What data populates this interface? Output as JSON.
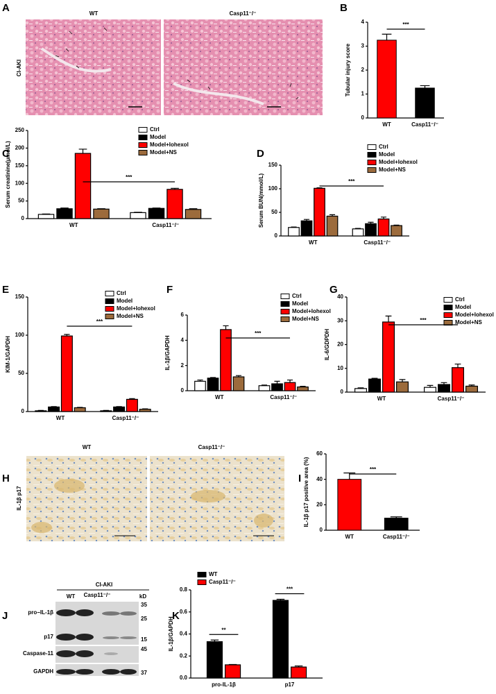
{
  "chart_data": [
    {
      "panel": "B",
      "type": "bar",
      "ylabel": "Tubular injury score",
      "categories": [
        "WT",
        "Casp11⁻/⁻"
      ],
      "values": [
        3.25,
        1.25
      ],
      "errors": [
        0.25,
        0.1
      ],
      "colors": [
        "#ff0000",
        "#000000"
      ],
      "ylim": [
        0,
        4
      ],
      "yticks": [
        0,
        1,
        2,
        3,
        4
      ],
      "significance": [
        "***"
      ]
    },
    {
      "panel": "C",
      "type": "grouped-bar",
      "ylabel": "Serum creatinine(μmol/L)",
      "categories": [
        "WT",
        "Casp11⁻/⁻"
      ],
      "series": [
        {
          "name": "Ctrl",
          "color": "#ffffff",
          "values": [
            12,
            17
          ],
          "errors": [
            1,
            1
          ]
        },
        {
          "name": "Model",
          "color": "#000000",
          "values": [
            28,
            29
          ],
          "errors": [
            2,
            1
          ]
        },
        {
          "name": "Model+Iohexol",
          "color": "#ff0000",
          "values": [
            185,
            83
          ],
          "errors": [
            12,
            3
          ]
        },
        {
          "name": "Model+NS",
          "color": "#9c6b3c",
          "values": [
            27,
            26
          ],
          "errors": [
            1,
            2
          ]
        }
      ],
      "ylim": [
        0,
        250
      ],
      "yticks": [
        0,
        50,
        100,
        150,
        200,
        250
      ],
      "significance": [
        "***"
      ]
    },
    {
      "panel": "D",
      "type": "grouped-bar",
      "ylabel": "Serum BUN(mmol/L)",
      "categories": [
        "WT",
        "Casp11⁻/⁻"
      ],
      "series": [
        {
          "name": "Ctrl",
          "color": "#ffffff",
          "values": [
            18,
            15
          ],
          "errors": [
            1,
            1
          ]
        },
        {
          "name": "Model",
          "color": "#000000",
          "values": [
            32,
            26
          ],
          "errors": [
            3,
            3
          ]
        },
        {
          "name": "Model+Iohexol",
          "color": "#ff0000",
          "values": [
            101,
            36
          ],
          "errors": [
            1,
            4
          ]
        },
        {
          "name": "Model+NS",
          "color": "#9c6b3c",
          "values": [
            42,
            22
          ],
          "errors": [
            3,
            1
          ]
        }
      ],
      "ylim": [
        0,
        150
      ],
      "yticks": [
        0,
        50,
        100,
        150
      ],
      "significance": [
        "***"
      ]
    },
    {
      "panel": "E",
      "type": "grouped-bar",
      "ylabel": "KIM-1/GAPDH",
      "categories": [
        "WT",
        "Casp11⁻/⁻"
      ],
      "series": [
        {
          "name": "Ctrl",
          "color": "#ffffff",
          "values": [
            1,
            1
          ],
          "errors": [
            0.5,
            0.5
          ]
        },
        {
          "name": "Model",
          "color": "#000000",
          "values": [
            6,
            6
          ],
          "errors": [
            0.5,
            0.5
          ]
        },
        {
          "name": "Model+Iohexol",
          "color": "#ff0000",
          "values": [
            99,
            16
          ],
          "errors": [
            2,
            1
          ]
        },
        {
          "name": "Model+NS",
          "color": "#9c6b3c",
          "values": [
            5,
            3
          ],
          "errors": [
            0.5,
            0.5
          ]
        }
      ],
      "ylim": [
        0,
        150
      ],
      "yticks": [
        0,
        50,
        100,
        150
      ],
      "significance": [
        "***"
      ]
    },
    {
      "panel": "F",
      "type": "grouped-bar",
      "ylabel": "IL-1β/GAPDH",
      "categories": [
        "WT",
        "Casp11⁻/⁻"
      ],
      "series": [
        {
          "name": "Ctrl",
          "color": "#ffffff",
          "values": [
            0.75,
            0.4
          ],
          "errors": [
            0.1,
            0.05
          ]
        },
        {
          "name": "Model",
          "color": "#000000",
          "values": [
            1.0,
            0.55
          ],
          "errors": [
            0.05,
            0.2
          ]
        },
        {
          "name": "Model+Iohexol",
          "color": "#ff0000",
          "values": [
            4.85,
            0.65
          ],
          "errors": [
            0.3,
            0.2
          ]
        },
        {
          "name": "Model+NS",
          "color": "#9c6b3c",
          "values": [
            1.1,
            0.3
          ],
          "errors": [
            0.1,
            0.05
          ]
        }
      ],
      "ylim": [
        0,
        6
      ],
      "yticks": [
        0,
        2,
        4,
        6
      ],
      "significance": [
        "***"
      ]
    },
    {
      "panel": "G",
      "type": "grouped-bar",
      "ylabel": "IL-6/GDPDH",
      "categories": [
        "WT",
        "Casp11⁻/⁻"
      ],
      "series": [
        {
          "name": "Ctrl",
          "color": "#ffffff",
          "values": [
            1.5,
            2
          ],
          "errors": [
            0.3,
            0.8
          ]
        },
        {
          "name": "Model",
          "color": "#000000",
          "values": [
            5.5,
            3.2
          ],
          "errors": [
            0.3,
            0.8
          ]
        },
        {
          "name": "Model+Iohexol",
          "color": "#ff0000",
          "values": [
            29.5,
            10.3
          ],
          "errors": [
            2.5,
            1.5
          ]
        },
        {
          "name": "Model+NS",
          "color": "#9c6b3c",
          "values": [
            4.3,
            2.5
          ],
          "errors": [
            1,
            0.5
          ]
        }
      ],
      "ylim": [
        0,
        40
      ],
      "yticks": [
        0,
        10,
        20,
        30,
        40
      ],
      "significance": [
        "***"
      ]
    },
    {
      "panel": "I",
      "type": "bar",
      "ylabel": "IL-1β p17 positive area (%)",
      "categories": [
        "WT",
        "Casp11⁻/⁻"
      ],
      "values": [
        40,
        9.5
      ],
      "errors": [
        5,
        1
      ],
      "colors": [
        "#ff0000",
        "#000000"
      ],
      "ylim": [
        0,
        60
      ],
      "yticks": [
        0,
        20,
        40,
        60
      ],
      "significance": [
        "***"
      ]
    },
    {
      "panel": "K",
      "type": "grouped-bar",
      "ylabel": "IL-1β/GAPDH",
      "categories": [
        "pro-IL-1β",
        "p17"
      ],
      "series": [
        {
          "name": "WT",
          "color": "#000000",
          "values": [
            0.33,
            0.705
          ],
          "errors": [
            0.015,
            0.01
          ]
        },
        {
          "name": "Casp11⁻/⁻",
          "color": "#ff0000",
          "values": [
            0.12,
            0.1
          ],
          "errors": [
            0.003,
            0.01
          ]
        }
      ],
      "ylim": [
        0,
        0.8
      ],
      "yticks": [
        {
          "value": 0,
          "label": "0.0"
        },
        0.2,
        0.4,
        0.6,
        0.8
      ],
      "significance": [
        "**",
        "***"
      ]
    }
  ],
  "images": [
    {
      "panel": "A",
      "row_label": "CI-AKI",
      "columns": [
        "WT",
        "Casp11⁻/⁻"
      ]
    },
    {
      "panel": "H",
      "row_label": "IL-1β p17",
      "columns": [
        "WT",
        "Casp11⁻/⁻"
      ]
    }
  ],
  "blot": {
    "panel": "J",
    "title": "CI-AKI",
    "columns": [
      "WT",
      "Casp11⁻/⁻"
    ],
    "unit": "kD",
    "rows": [
      "pro−IL-1β",
      "p17",
      "Caspase-11",
      "GAPDH"
    ],
    "markers": [
      35,
      25,
      15,
      45,
      37
    ]
  }
}
